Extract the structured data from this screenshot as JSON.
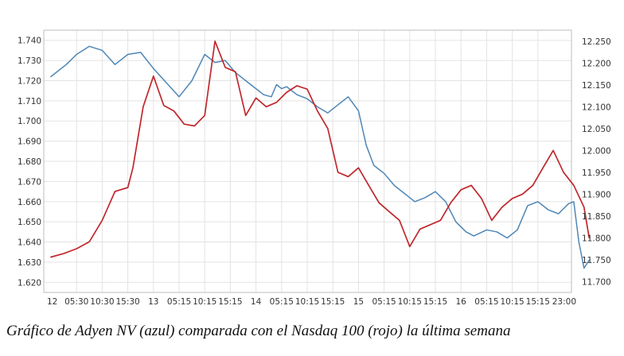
{
  "chart_data": {
    "type": "line",
    "caption": "Gráfico de Adyen NV (azul) comparada con el Nasdaq 100 (rojo) la última semana",
    "x_tick_labels": [
      "12",
      "05:30",
      "10:30",
      "15:30",
      "13",
      "05:15",
      "10:15",
      "15:15",
      "14",
      "05:15",
      "10:15",
      "15:15",
      "15",
      "05:15",
      "10:15",
      "15:15",
      "16",
      "05:15",
      "10:15",
      "15:15",
      "23:00"
    ],
    "y_left": {
      "min": 1.615,
      "max": 1.745,
      "ticks": [
        "1.620",
        "1.630",
        "1.640",
        "1.650",
        "1.660",
        "1.670",
        "1.680",
        "1.690",
        "1.700",
        "1.710",
        "1.720",
        "1.730",
        "1.740"
      ]
    },
    "y_right": {
      "min": 11.675,
      "max": 12.275,
      "ticks": [
        "11.700",
        "11.750",
        "11.800",
        "11.850",
        "11.900",
        "11.950",
        "12.000",
        "12.050",
        "12.100",
        "12.150",
        "12.200",
        "12.250"
      ]
    },
    "grid": true,
    "series": [
      {
        "axis": "left",
        "color": "#4f86b5",
        "x": [
          0.0,
          0.6,
          1.0,
          1.5,
          2.0,
          2.5,
          3.0,
          3.5,
          4.0,
          4.5,
          5.0,
          5.5,
          6.0,
          6.4,
          6.8,
          7.2,
          7.6,
          8.0,
          8.3,
          8.6,
          8.8,
          9.0,
          9.2,
          9.6,
          10.0,
          10.4,
          10.8,
          11.2,
          11.6,
          12.0,
          12.3,
          12.6,
          13.0,
          13.4,
          13.8,
          14.2,
          14.6,
          15.0,
          15.4,
          15.8,
          16.2,
          16.5,
          17.0,
          17.4,
          17.8,
          18.2,
          18.6,
          19.0,
          19.4,
          19.8,
          20.2,
          20.4,
          20.6,
          20.8,
          21.0
        ],
        "y": [
          1.722,
          1.728,
          1.733,
          1.737,
          1.735,
          1.728,
          1.733,
          1.734,
          1.726,
          1.719,
          1.712,
          1.72,
          1.733,
          1.729,
          1.73,
          1.724,
          1.72,
          1.716,
          1.713,
          1.712,
          1.718,
          1.716,
          1.717,
          1.713,
          1.711,
          1.707,
          1.704,
          1.708,
          1.712,
          1.705,
          1.688,
          1.678,
          1.674,
          1.668,
          1.664,
          1.66,
          1.662,
          1.665,
          1.66,
          1.65,
          1.645,
          1.643,
          1.646,
          1.645,
          1.642,
          1.646,
          1.658,
          1.66,
          1.656,
          1.654,
          1.659,
          1.66,
          1.64,
          1.627,
          1.631
        ]
      },
      {
        "axis": "right",
        "color": "#c0282d",
        "x": [
          0.0,
          0.5,
          1.0,
          1.5,
          2.0,
          2.5,
          3.0,
          3.2,
          3.6,
          4.0,
          4.4,
          4.8,
          5.2,
          5.6,
          6.0,
          6.4,
          6.8,
          7.2,
          7.6,
          8.0,
          8.4,
          8.8,
          9.2,
          9.6,
          10.0,
          10.4,
          10.8,
          11.2,
          11.6,
          12.0,
          12.4,
          12.8,
          13.2,
          13.6,
          14.0,
          14.4,
          14.8,
          15.2,
          15.6,
          16.0,
          16.4,
          16.8,
          17.2,
          17.6,
          18.0,
          18.4,
          18.8,
          19.2,
          19.6,
          20.0,
          20.4,
          20.8,
          21.0
        ],
        "y": [
          11.756,
          11.764,
          11.775,
          11.791,
          11.84,
          11.906,
          11.915,
          11.96,
          12.1,
          12.17,
          12.103,
          12.09,
          12.06,
          12.056,
          12.08,
          12.25,
          12.19,
          12.18,
          12.08,
          12.12,
          12.1,
          12.11,
          12.133,
          12.148,
          12.14,
          12.09,
          12.05,
          11.95,
          11.94,
          11.96,
          11.92,
          11.88,
          11.86,
          11.84,
          11.78,
          11.82,
          11.83,
          11.84,
          11.88,
          11.91,
          11.92,
          11.89,
          11.84,
          11.87,
          11.89,
          11.9,
          11.92,
          11.96,
          12.0,
          11.95,
          11.92,
          11.87,
          11.8
        ]
      }
    ]
  }
}
